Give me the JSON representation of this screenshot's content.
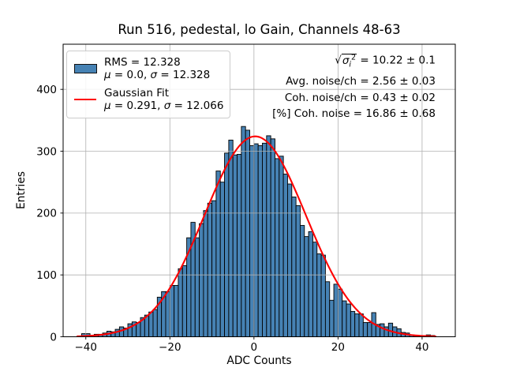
{
  "title": "Run 516, pedestal, lo Gain, Channels 48-63",
  "axes": {
    "xlabel": "ADC Counts",
    "ylabel": "Entries",
    "xtick_labels": [
      "−40",
      "−20",
      "0",
      "20",
      "40"
    ],
    "ytick_labels": [
      "0",
      "100",
      "200",
      "300",
      "400"
    ]
  },
  "legend": {
    "hist_label": "RMS = 12.328",
    "hist_mu": {
      "mu": "μ",
      "eq1": " = 0.0, ",
      "sigma": "σ",
      "eq2": " = 12.328"
    },
    "fit_label": "Gaussian Fit",
    "fit_mu": {
      "mu": "μ",
      "eq1": " = 0.291, ",
      "sigma": "σ",
      "eq2": " = 12.066"
    }
  },
  "stats": {
    "sqrt": {
      "radical": "√",
      "symbol": "σ",
      "sub": "i",
      "sup": "2",
      "rest": " = 10.22 ± 0.1"
    },
    "line2": "Avg. noise/ch = 2.56 ± 0.03",
    "line3": "Coh. noise/ch = 0.43 ± 0.02",
    "line4": "[%] Coh. noise = 16.86 ± 0.68"
  },
  "colors": {
    "bar_fill": "#4682b4",
    "bar_edge": "#000000",
    "fit_line": "#ff0000",
    "grid": "#b0b0b0",
    "legend_border": "#cccccc"
  },
  "chart_data": {
    "type": "bar",
    "subtype": "histogram-with-gaussian-fit",
    "title": "Run 516, pedestal, lo Gain, Channels 48-63",
    "xlabel": "ADC Counts",
    "ylabel": "Entries",
    "xlim": [
      -45.4,
      47.9
    ],
    "ylim": [
      0,
      473
    ],
    "xticks": [
      -40,
      -20,
      0,
      20,
      40
    ],
    "yticks": [
      0,
      100,
      200,
      300,
      400
    ],
    "grid": true,
    "legend_position": "upper left",
    "bin_start": -41,
    "bin_width": 1,
    "bin_counts": [
      5,
      5,
      2,
      4,
      4,
      6,
      9,
      8,
      12,
      16,
      14,
      21,
      24,
      23,
      31,
      35,
      40,
      44,
      64,
      73,
      73,
      83,
      83,
      110,
      115,
      160,
      185,
      160,
      183,
      204,
      216,
      220,
      268,
      250,
      297,
      318,
      294,
      295,
      340,
      334,
      309,
      312,
      309,
      313,
      325,
      320,
      288,
      292,
      263,
      247,
      226,
      212,
      180,
      162,
      170,
      153,
      134,
      132,
      89,
      59,
      85,
      77,
      58,
      53,
      41,
      37,
      37,
      23,
      23,
      39,
      20,
      21,
      16,
      22,
      16,
      13,
      7,
      6,
      3,
      2,
      0,
      0,
      3,
      2
    ],
    "hist_stats": {
      "rms": 12.328,
      "mu": 0.0,
      "sigma": 12.328
    },
    "gaussian_fit": {
      "mu": 0.291,
      "sigma": 12.066,
      "amplitude": 324,
      "draw_range": [
        -42,
        43.5
      ]
    },
    "annotations": {
      "sqrt_sigma_i2": "10.22 ± 0.1",
      "avg_noise_per_ch": "2.56 ± 0.03",
      "coh_noise_per_ch": "0.43 ± 0.02",
      "pct_coh_noise": "16.86 ± 0.68"
    }
  }
}
